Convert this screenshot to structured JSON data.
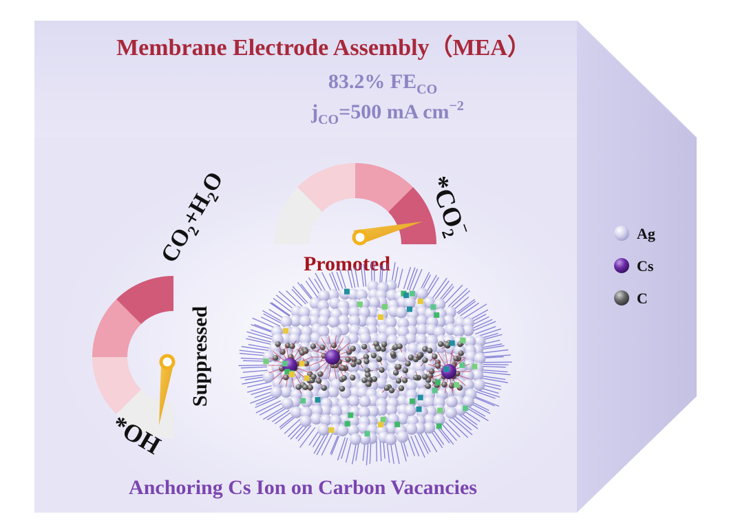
{
  "header": {
    "title": "Membrane Electrode Assembly（MEA）",
    "fe_value": "83.2% FE",
    "fe_sub": "CO",
    "j_prefix": "j",
    "j_sub": "CO",
    "j_value": "=500 mA cm",
    "j_sup": "−2"
  },
  "gauge_top": {
    "label": "Promoted",
    "species": "*CO",
    "species_sub": "2",
    "species_sup": "−",
    "level": 0.88
  },
  "gauge_left": {
    "label": "Suppressed",
    "reactants": [
      "CO",
      "2",
      "+H",
      "2",
      "O"
    ],
    "species": "*OH",
    "level": 0.15
  },
  "legend": {
    "items": [
      {
        "label": "Ag",
        "color": "#c7c6e8"
      },
      {
        "label": "Cs",
        "color": "#6a2aa6"
      },
      {
        "label": "C",
        "color": "#6a6a6a"
      }
    ]
  },
  "footer": {
    "caption": "Anchoring Cs Ion on Carbon Vacancies"
  },
  "colors": {
    "title_red": "#a8283a",
    "stats_purple": "#8d84c4",
    "caption_purple": "#7b45b0",
    "promoted_red": "#a5141c",
    "needle_yellow": "#f2b21f"
  }
}
